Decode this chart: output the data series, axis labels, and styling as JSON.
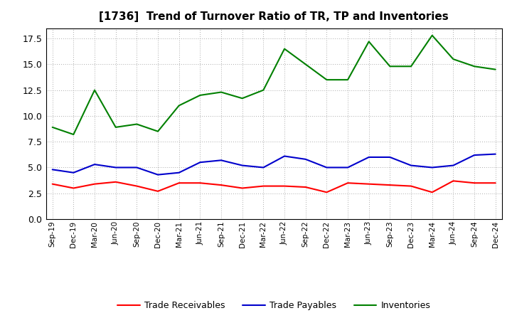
{
  "title": "[1736]  Trend of Turnover Ratio of TR, TP and Inventories",
  "x_labels": [
    "Sep-19",
    "Dec-19",
    "Mar-20",
    "Jun-20",
    "Sep-20",
    "Dec-20",
    "Mar-21",
    "Jun-21",
    "Sep-21",
    "Dec-21",
    "Mar-22",
    "Jun-22",
    "Sep-22",
    "Dec-22",
    "Mar-23",
    "Jun-23",
    "Sep-23",
    "Dec-23",
    "Mar-24",
    "Jun-24",
    "Sep-24",
    "Dec-24"
  ],
  "trade_receivables": [
    3.4,
    3.0,
    3.4,
    3.6,
    3.2,
    2.7,
    3.5,
    3.5,
    3.3,
    3.0,
    3.2,
    3.2,
    3.1,
    2.6,
    3.5,
    3.4,
    3.3,
    3.2,
    2.6,
    3.7,
    3.5,
    3.5
  ],
  "trade_payables": [
    4.8,
    4.5,
    5.3,
    5.0,
    5.0,
    4.3,
    4.5,
    5.5,
    5.7,
    5.2,
    5.0,
    6.1,
    5.8,
    5.0,
    5.0,
    6.0,
    6.0,
    5.2,
    5.0,
    5.2,
    6.2,
    6.3
  ],
  "inventories": [
    8.9,
    8.2,
    12.5,
    8.9,
    9.2,
    8.5,
    11.0,
    12.0,
    12.3,
    11.7,
    12.5,
    16.5,
    15.0,
    13.5,
    13.5,
    17.2,
    14.8,
    14.8,
    17.8,
    15.5,
    14.8,
    14.5
  ],
  "ylim": [
    0.0,
    18.5
  ],
  "yticks": [
    0.0,
    2.5,
    5.0,
    7.5,
    10.0,
    12.5,
    15.0,
    17.5
  ],
  "colors": {
    "trade_receivables": "#ff0000",
    "trade_payables": "#0000cc",
    "inventories": "#008000"
  },
  "legend_labels": [
    "Trade Receivables",
    "Trade Payables",
    "Inventories"
  ],
  "background_color": "#ffffff",
  "grid_color": "#aaaaaa"
}
